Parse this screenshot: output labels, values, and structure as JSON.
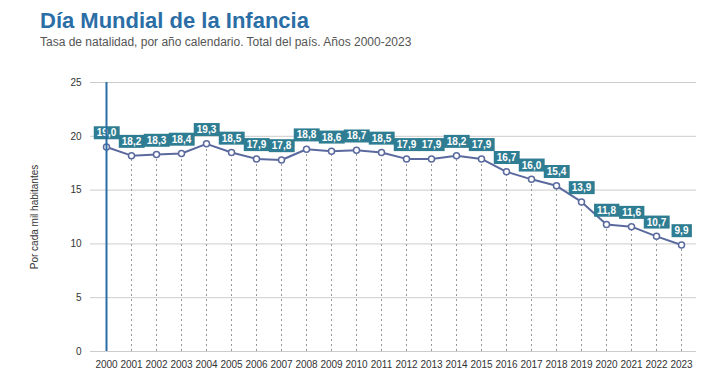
{
  "chart_data": {
    "type": "line",
    "title": "Día Mundial de la Infancia",
    "subtitle": "Tasa de natalidad, por año calendario. Total del país. Años 2000-2023",
    "y_label": "Por cada mil habitantes",
    "categories": [
      "2000",
      "2001",
      "2002",
      "2003",
      "2004",
      "2005",
      "2006",
      "2007",
      "2008",
      "2009",
      "2010",
      "2011",
      "2012",
      "2013",
      "2014",
      "2015",
      "2016",
      "2017",
      "2018",
      "2019",
      "2020",
      "2021",
      "2022",
      "2023"
    ],
    "values": [
      19.0,
      18.2,
      18.3,
      18.4,
      19.3,
      18.5,
      17.9,
      17.8,
      18.8,
      18.6,
      18.7,
      18.5,
      17.9,
      17.9,
      18.2,
      17.9,
      16.7,
      16.0,
      15.4,
      13.9,
      11.8,
      11.6,
      10.7,
      9.9
    ],
    "value_labels": [
      "19,0",
      "18,2",
      "18,3",
      "18,4",
      "19,3",
      "18,5",
      "17,9",
      "17,8",
      "18,8",
      "18,6",
      "18,7",
      "18,5",
      "17,9",
      "17,9",
      "18,2",
      "17,9",
      "16,7",
      "16,0",
      "15,4",
      "13,9",
      "11,8",
      "11,6",
      "10,7",
      "9,9"
    ],
    "ylim": [
      0,
      25
    ],
    "yticks": [
      0,
      5,
      10,
      15,
      20,
      25
    ],
    "grid": true,
    "data_labels": true,
    "color": "#5b6a9e",
    "marker": "circle"
  }
}
